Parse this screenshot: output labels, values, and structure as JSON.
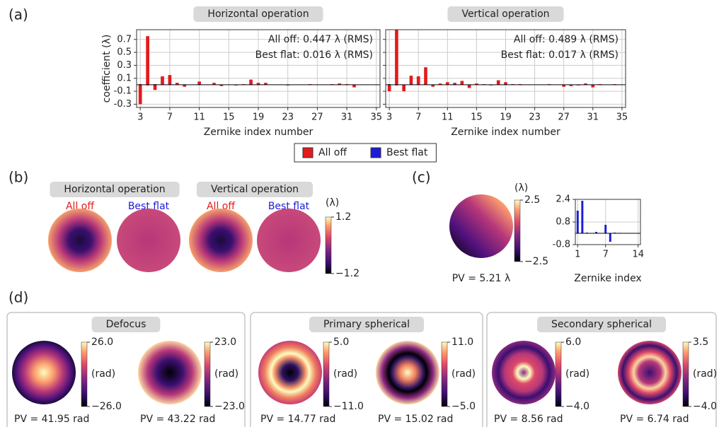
{
  "panel_labels": [
    "(a)",
    "(b)",
    "(c)",
    "(d)"
  ],
  "chart_data": [
    {
      "type": "bar",
      "title": "Horizontal operation",
      "xlabel": "Zernike index number",
      "ylabel": "coefficient (λ)",
      "annotations": [
        "All off: 0.447 λ (RMS)",
        "Best flat: 0.016 λ (RMS)"
      ],
      "x": [
        3,
        4,
        5,
        6,
        7,
        8,
        9,
        10,
        11,
        12,
        13,
        14,
        15,
        16,
        17,
        18,
        19,
        20,
        21,
        22,
        23,
        24,
        25,
        26,
        27,
        28,
        29,
        30,
        31,
        32,
        33,
        34,
        35
      ],
      "series": [
        {
          "name": "All off",
          "color": "#e41a1c",
          "values": [
            -0.3,
            0.75,
            -0.08,
            0.13,
            0.15,
            0.03,
            -0.03,
            0,
            0.05,
            0,
            0.03,
            -0.02,
            0,
            -0.01,
            0.01,
            0.08,
            0.03,
            0.03,
            0,
            0,
            -0.01,
            0,
            0,
            0.01,
            0,
            0,
            0.01,
            0.02,
            0.01,
            -0.04,
            0,
            0,
            0
          ]
        },
        {
          "name": "Best flat",
          "color": "#1c1cd6",
          "values": [
            0.01,
            -0.01,
            0.01,
            0,
            0.01,
            0,
            -0.01,
            0,
            0.01,
            0,
            0,
            0,
            0,
            0,
            0,
            0.01,
            0,
            0,
            0,
            0,
            0,
            0,
            0,
            0,
            0,
            0,
            0,
            0,
            0,
            0,
            0,
            0,
            0
          ]
        }
      ],
      "xlim": [
        2.5,
        35.5
      ],
      "xticks": [
        3,
        7,
        11,
        15,
        19,
        23,
        27,
        31,
        35
      ],
      "ylim": [
        -0.35,
        0.85
      ],
      "yticks": [
        -0.3,
        -0.1,
        0.1,
        0.3,
        0.5,
        0.7
      ],
      "ytick_labels": true,
      "grid": true,
      "legend": "bottom"
    },
    {
      "type": "bar",
      "title": "Vertical operation",
      "xlabel": "Zernike index number",
      "annotations": [
        "All off: 0.489 λ (RMS)",
        "Best flat: 0.017 λ (RMS)"
      ],
      "x": [
        3,
        4,
        5,
        6,
        7,
        8,
        9,
        10,
        11,
        12,
        13,
        14,
        15,
        16,
        17,
        18,
        19,
        20,
        21,
        22,
        23,
        24,
        25,
        26,
        27,
        28,
        29,
        30,
        31,
        32,
        33,
        34,
        35
      ],
      "series": [
        {
          "color": "#e41a1c",
          "values": [
            -0.1,
            0.85,
            -0.1,
            0.14,
            0.13,
            0.27,
            -0.03,
            0.02,
            0.04,
            0.03,
            0.06,
            -0.05,
            0.02,
            0.01,
            -0.01,
            0.07,
            0.04,
            0.01,
            0.01,
            0,
            0,
            0,
            0.01,
            0,
            -0.03,
            -0.02,
            -0.01,
            0.02,
            -0.04,
            0.01,
            0,
            0.01,
            0
          ]
        },
        {
          "color": "#1c1cd6",
          "values": [
            0.01,
            -0.01,
            0,
            0.01,
            0,
            0.01,
            0,
            0,
            0,
            0.01,
            0,
            0,
            0,
            0,
            0,
            0,
            0.01,
            0,
            0,
            0,
            0,
            0,
            0,
            0,
            0,
            0,
            0,
            0,
            0,
            0,
            0,
            0,
            0
          ]
        }
      ],
      "xlim": [
        2.5,
        35.5
      ],
      "xticks": [
        3,
        7,
        11,
        15,
        19,
        23,
        27,
        31,
        35
      ],
      "ylim": [
        -0.35,
        0.85
      ],
      "yticks": [
        -0.3,
        -0.1,
        0.1,
        0.3,
        0.5,
        0.7
      ],
      "ytick_labels": false,
      "grid": true
    },
    {
      "type": "bar",
      "xlabel": "Zernike index",
      "x": [
        1,
        2,
        3,
        4,
        5,
        6,
        7,
        8,
        9,
        10,
        11,
        12,
        13,
        14
      ],
      "series": [
        {
          "color": "#1c1cd6",
          "values": [
            1.6,
            2.3,
            0.05,
            0,
            0.1,
            0,
            0.6,
            -0.6,
            0.05,
            0.03,
            0,
            0,
            0,
            0
          ]
        }
      ],
      "xlim": [
        0.5,
        14.5
      ],
      "xticks": [
        1,
        7,
        14
      ],
      "ylim": [
        -0.8,
        2.4
      ],
      "yticks": [
        -0.8,
        0.8,
        2.4
      ],
      "ytick_labels": true,
      "grid": true
    }
  ],
  "panel_b": {
    "titles": [
      "Horizontal operation",
      "Vertical operation"
    ],
    "map_labels": [
      "All off",
      "Best flat",
      "All off",
      "Best flat"
    ],
    "colorbar": {
      "unit": "(λ)",
      "max": "1.2",
      "min": "−1.2"
    }
  },
  "panel_c": {
    "colorbar": {
      "unit": "(λ)",
      "max": "2.5",
      "min": "−2.5"
    },
    "pv": "PV = 5.21 λ"
  },
  "panel_d": {
    "sections": [
      {
        "title": "Defocus",
        "maps": [
          {
            "max": "26.0",
            "unit": "(rad)",
            "min": "−26.0",
            "pv": "PV = 41.95 rad"
          },
          {
            "max": "23.0",
            "unit": "(rad)",
            "min": "−23.0",
            "pv": "PV = 43.22 rad"
          }
        ]
      },
      {
        "title": "Primary spherical",
        "maps": [
          {
            "max": "5.0",
            "unit": "(rad)",
            "min": "−11.0",
            "pv": "PV = 14.77 rad"
          },
          {
            "max": "11.0",
            "unit": "(rad)",
            "min": "−5.0",
            "pv": "PV = 15.02 rad"
          }
        ]
      },
      {
        "title": "Secondary spherical",
        "maps": [
          {
            "max": "6.0",
            "unit": "(rad)",
            "min": "−4.0",
            "pv": "PV = 8.56 rad"
          },
          {
            "max": "3.5",
            "unit": "(rad)",
            "min": "−4.0",
            "pv": "PV = 6.74 rad"
          }
        ]
      }
    ]
  }
}
